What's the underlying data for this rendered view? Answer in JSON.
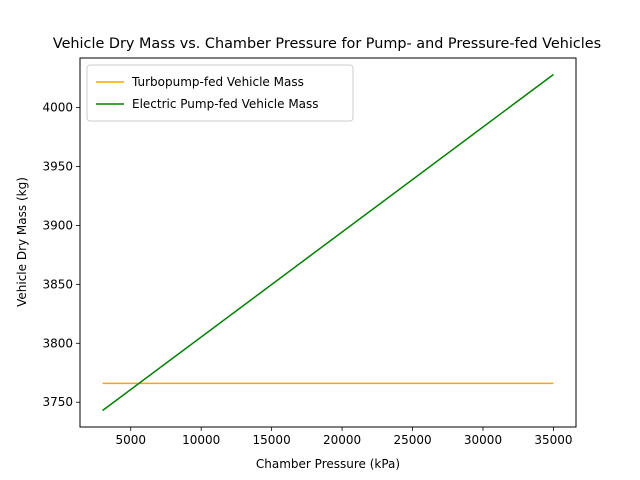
{
  "chart_data": {
    "type": "line",
    "title": "Vehicle Dry Mass vs. Chamber Pressure for Pump- and Pressure-fed Vehicles",
    "xlabel": "Chamber Pressure (kPa)",
    "ylabel": "Vehicle Dry Mass (kg)",
    "xlim": [
      1400,
      36600
    ],
    "ylim": [
      3729,
      4042
    ],
    "xticks": [
      5000,
      10000,
      15000,
      20000,
      25000,
      30000,
      35000
    ],
    "yticks": [
      3750,
      3800,
      3850,
      3900,
      3950,
      4000
    ],
    "grid": false,
    "legend_position": "top-left",
    "series": [
      {
        "name": "Turbopump-fed Vehicle Mass",
        "color": "#ffa500",
        "x": [
          3000,
          35000
        ],
        "y": [
          3766,
          3766
        ]
      },
      {
        "name": "Electric Pump-fed Vehicle Mass",
        "color": "#008000",
        "x": [
          3000,
          35000
        ],
        "y": [
          3743,
          4028
        ]
      }
    ]
  }
}
